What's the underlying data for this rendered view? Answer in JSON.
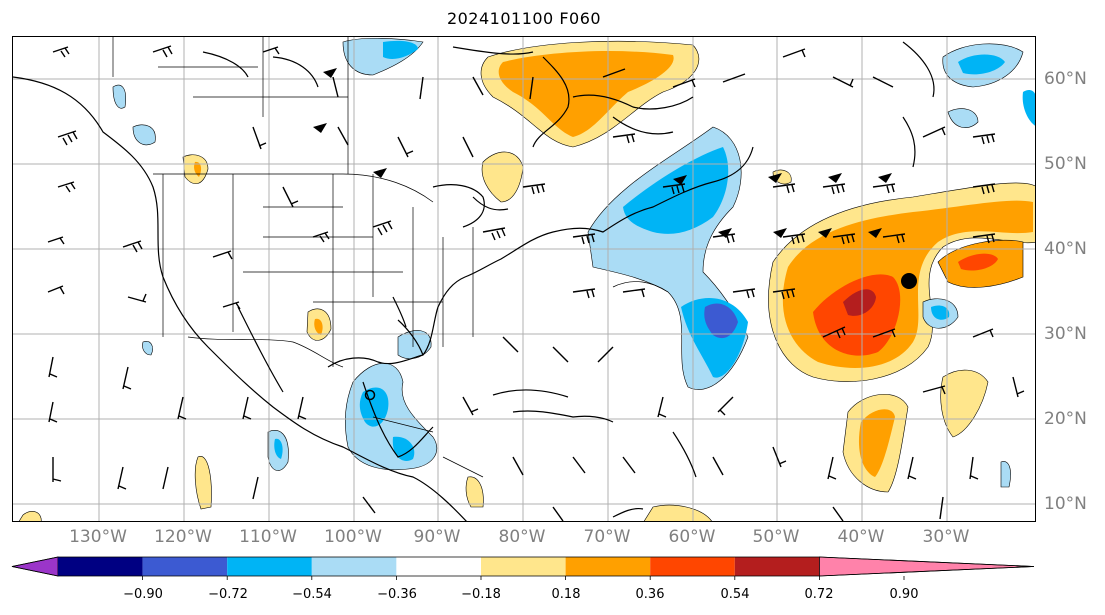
{
  "title": "2024101100 F060",
  "colors": {
    "lightblue": "#aadcf5",
    "skyblue": "#00b4f5",
    "royalblue": "#3c5ad2",
    "navy": "#000082",
    "purple": "#9b35c9",
    "paleyellow": "#ffe68c",
    "orange": "#ffa000",
    "redorange": "#ff4600",
    "darkred": "#b41e1e",
    "pink": "#ff82aa",
    "grid": "#b0b0b0",
    "axislabel": "#808080"
  },
  "lon_labels": [
    "130°W",
    "120°W",
    "110°W",
    "100°W",
    "90°W",
    "80°W",
    "70°W",
    "60°W",
    "50°W",
    "40°W",
    "30°W"
  ],
  "lat_labels": [
    "60°N",
    "50°N",
    "40°N",
    "30°N",
    "20°N",
    "10°N"
  ],
  "colorbar": {
    "ticks": [
      "−0.90",
      "−0.72",
      "−0.54",
      "−0.36",
      "−0.18",
      "0.18",
      "0.36",
      "0.54",
      "0.72",
      "0.90"
    ],
    "colors": [
      "#9b35c9",
      "#000082",
      "#3c5ad2",
      "#00b4f5",
      "#aadcf5",
      "#ffffff",
      "#ffe68c",
      "#ffa000",
      "#ff4600",
      "#b41e1e",
      "#ff82aa"
    ]
  }
}
